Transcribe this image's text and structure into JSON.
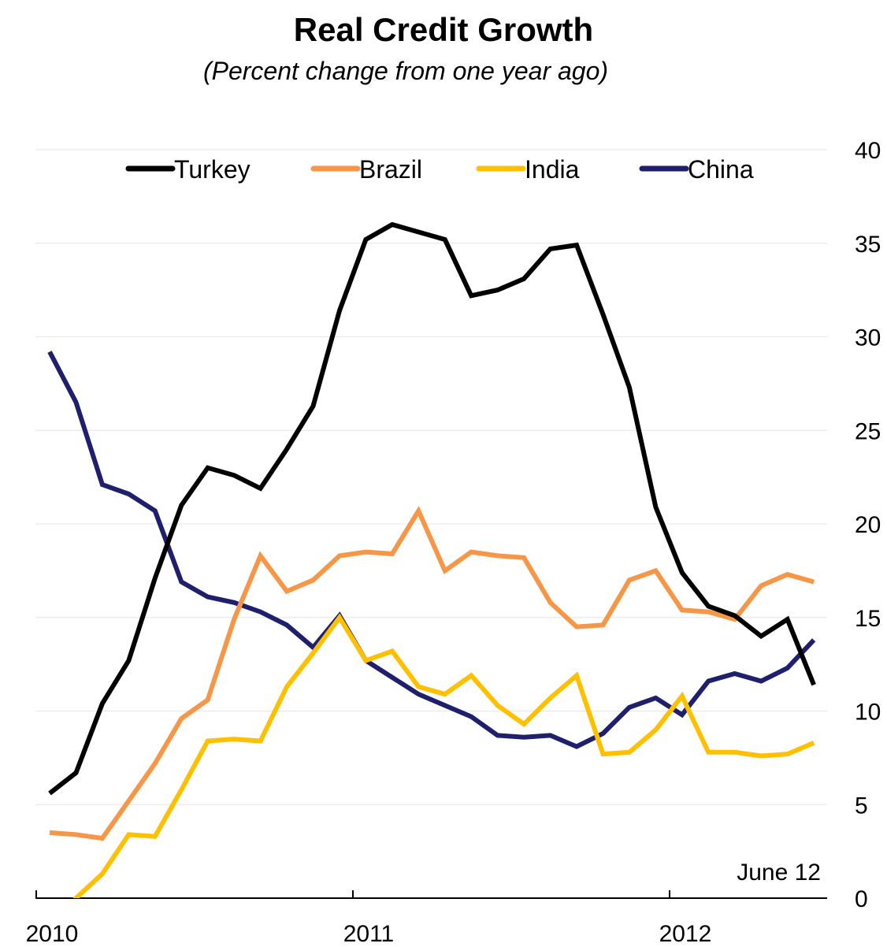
{
  "chart_data": {
    "type": "line",
    "title": "Real Credit Growth",
    "subtitle": "(Percent change from one year ago)",
    "xlabel": "",
    "ylabel": "",
    "x_tick_labels": [
      "2010",
      "2011",
      "2012"
    ],
    "y_tick_labels": [
      "0",
      "5",
      "10",
      "15",
      "20",
      "25",
      "30",
      "35",
      "40"
    ],
    "ylim": [
      0,
      40
    ],
    "y_axis_side": "right",
    "grid": true,
    "legend_position": "top",
    "annotation": "June 12",
    "x_periods": [
      "2010-01",
      "2010-02",
      "2010-03",
      "2010-04",
      "2010-05",
      "2010-06",
      "2010-07",
      "2010-08",
      "2010-09",
      "2010-10",
      "2010-11",
      "2010-12",
      "2011-01",
      "2011-02",
      "2011-03",
      "2011-04",
      "2011-05",
      "2011-06",
      "2011-07",
      "2011-08",
      "2011-09",
      "2011-10",
      "2011-11",
      "2011-12",
      "2012-01",
      "2012-02",
      "2012-03",
      "2012-04",
      "2012-05",
      "2012-06"
    ],
    "series": [
      {
        "name": "Turkey",
        "color": "#000000",
        "values": [
          5.6,
          6.7,
          10.4,
          12.7,
          17.1,
          21.0,
          23.0,
          22.6,
          21.9,
          24.0,
          26.3,
          31.4,
          35.2,
          36.0,
          35.6,
          35.2,
          32.2,
          32.5,
          33.1,
          34.7,
          34.9,
          31.2,
          27.3,
          20.9,
          17.4,
          15.6,
          15.1,
          14.0,
          14.9,
          11.4
        ]
      },
      {
        "name": "Brazil",
        "color": "#f79646",
        "values": [
          3.5,
          3.4,
          3.2,
          5.2,
          7.2,
          9.6,
          10.6,
          14.9,
          18.3,
          16.4,
          17.0,
          18.3,
          18.5,
          18.4,
          20.7,
          17.5,
          18.5,
          18.3,
          18.2,
          15.8,
          14.5,
          14.6,
          17.0,
          17.5,
          15.4,
          15.3,
          14.9,
          16.7,
          17.3,
          16.9
        ]
      },
      {
        "name": "India",
        "color": "#ffc000",
        "values": [
          -1.5,
          0.0,
          1.3,
          3.4,
          3.3,
          5.8,
          8.4,
          8.5,
          8.4,
          11.3,
          13.1,
          15.0,
          12.7,
          13.2,
          11.3,
          10.9,
          11.9,
          10.3,
          9.3,
          10.7,
          11.9,
          7.7,
          7.8,
          9.0,
          10.8,
          7.8,
          7.8,
          7.6,
          7.7,
          8.3
        ]
      },
      {
        "name": "China",
        "color": "#1f1f6e",
        "values": [
          29.2,
          26.5,
          22.1,
          21.6,
          20.7,
          16.9,
          16.1,
          15.8,
          15.3,
          14.6,
          13.4,
          15.1,
          12.7,
          11.8,
          10.9,
          10.3,
          9.7,
          8.7,
          8.6,
          8.7,
          8.1,
          8.8,
          10.2,
          10.7,
          9.8,
          11.6,
          12.0,
          11.6,
          12.3,
          13.8
        ]
      }
    ]
  }
}
